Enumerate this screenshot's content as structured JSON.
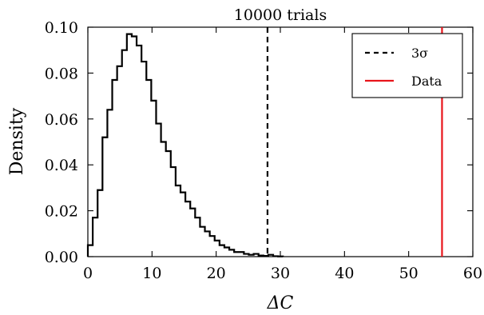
{
  "chart_data": {
    "type": "histogram",
    "title": "10000 trials",
    "xlabel": "ΔC",
    "ylabel": "Density",
    "xlim": [
      0,
      60
    ],
    "ylim": [
      0,
      0.1
    ],
    "xticks": [
      0,
      10,
      20,
      30,
      40,
      50,
      60
    ],
    "yticks": [
      0.0,
      0.02,
      0.04,
      0.06,
      0.08,
      0.1
    ],
    "xtick_labels": [
      "0",
      "10",
      "20",
      "30",
      "40",
      "50",
      "60"
    ],
    "ytick_labels": [
      "0.00",
      "0.02",
      "0.04",
      "0.06",
      "0.08",
      "0.10"
    ],
    "grid": false,
    "legend": {
      "position": "top-right",
      "entries": [
        {
          "label": "3σ",
          "style": "dashed",
          "color": "#000000"
        },
        {
          "label": "Data",
          "style": "solid",
          "color": "#e8151b"
        }
      ]
    },
    "histogram": {
      "color": "#000000",
      "bin_edges": [
        0,
        0.76,
        1.52,
        2.28,
        3.04,
        3.8,
        4.56,
        5.32,
        6.08,
        6.84,
        7.6,
        8.36,
        9.12,
        9.88,
        10.64,
        11.4,
        12.16,
        12.92,
        13.68,
        14.44,
        15.2,
        15.96,
        16.72,
        17.48,
        18.24,
        19.0,
        19.76,
        20.52,
        21.28,
        22.04,
        22.8,
        23.56,
        24.32,
        25.08,
        25.84,
        26.6,
        27.36,
        28.12,
        28.88,
        29.64,
        30.4
      ],
      "densities": [
        0.005,
        0.017,
        0.029,
        0.052,
        0.064,
        0.077,
        0.083,
        0.09,
        0.097,
        0.096,
        0.092,
        0.085,
        0.077,
        0.068,
        0.058,
        0.05,
        0.046,
        0.039,
        0.031,
        0.028,
        0.024,
        0.021,
        0.017,
        0.013,
        0.011,
        0.009,
        0.007,
        0.005,
        0.004,
        0.003,
        0.002,
        0.002,
        0.0012,
        0.0008,
        0.0012,
        0.0005,
        0.0003,
        0.0008,
        0.0002,
        0.0001
      ]
    },
    "vlines": [
      {
        "name": "3σ",
        "x": 28.0,
        "color": "#000000",
        "style": "dashed"
      },
      {
        "name": "Data",
        "x": 55.2,
        "color": "#e8151b",
        "style": "solid"
      }
    ]
  }
}
